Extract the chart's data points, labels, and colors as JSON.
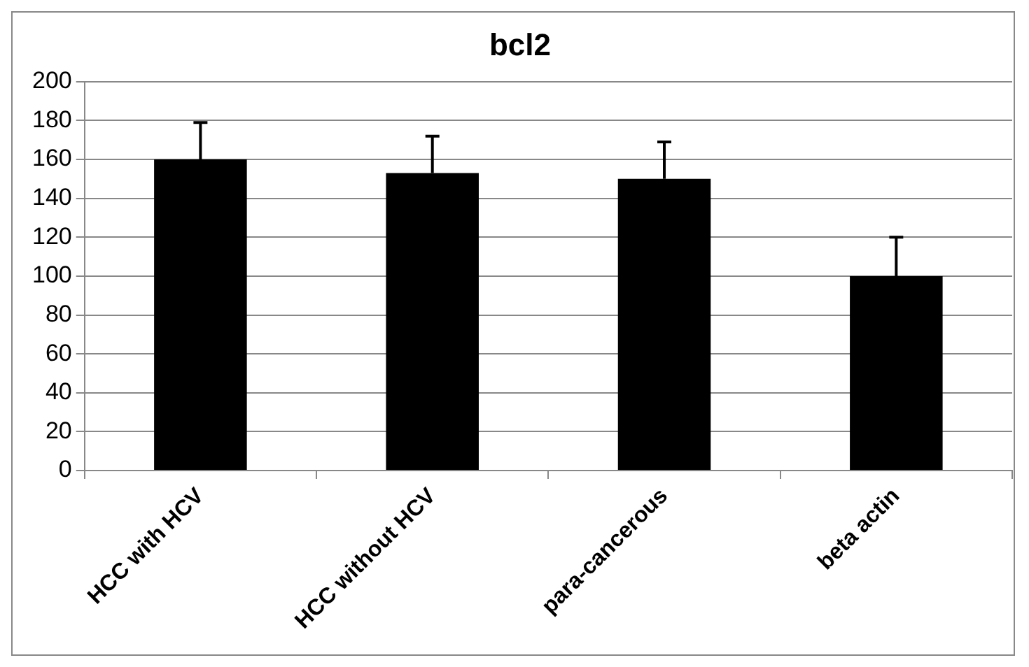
{
  "chart_data": {
    "type": "bar",
    "title": "bcl2",
    "categories": [
      "HCC with HCV",
      "HCC without HCV",
      "para-cancerous",
      "beta actin"
    ],
    "values": [
      160,
      153,
      150,
      100
    ],
    "color": "#000000",
    "errors": [
      [
        160,
        179
      ],
      [
        153,
        172
      ],
      [
        150,
        169
      ],
      [
        100,
        120
      ]
    ],
    "ylim": [
      0,
      200
    ],
    "yticks": [
      0,
      20,
      40,
      60,
      80,
      100,
      120,
      140,
      160,
      180,
      200
    ],
    "grid": "y",
    "legend": false
  }
}
